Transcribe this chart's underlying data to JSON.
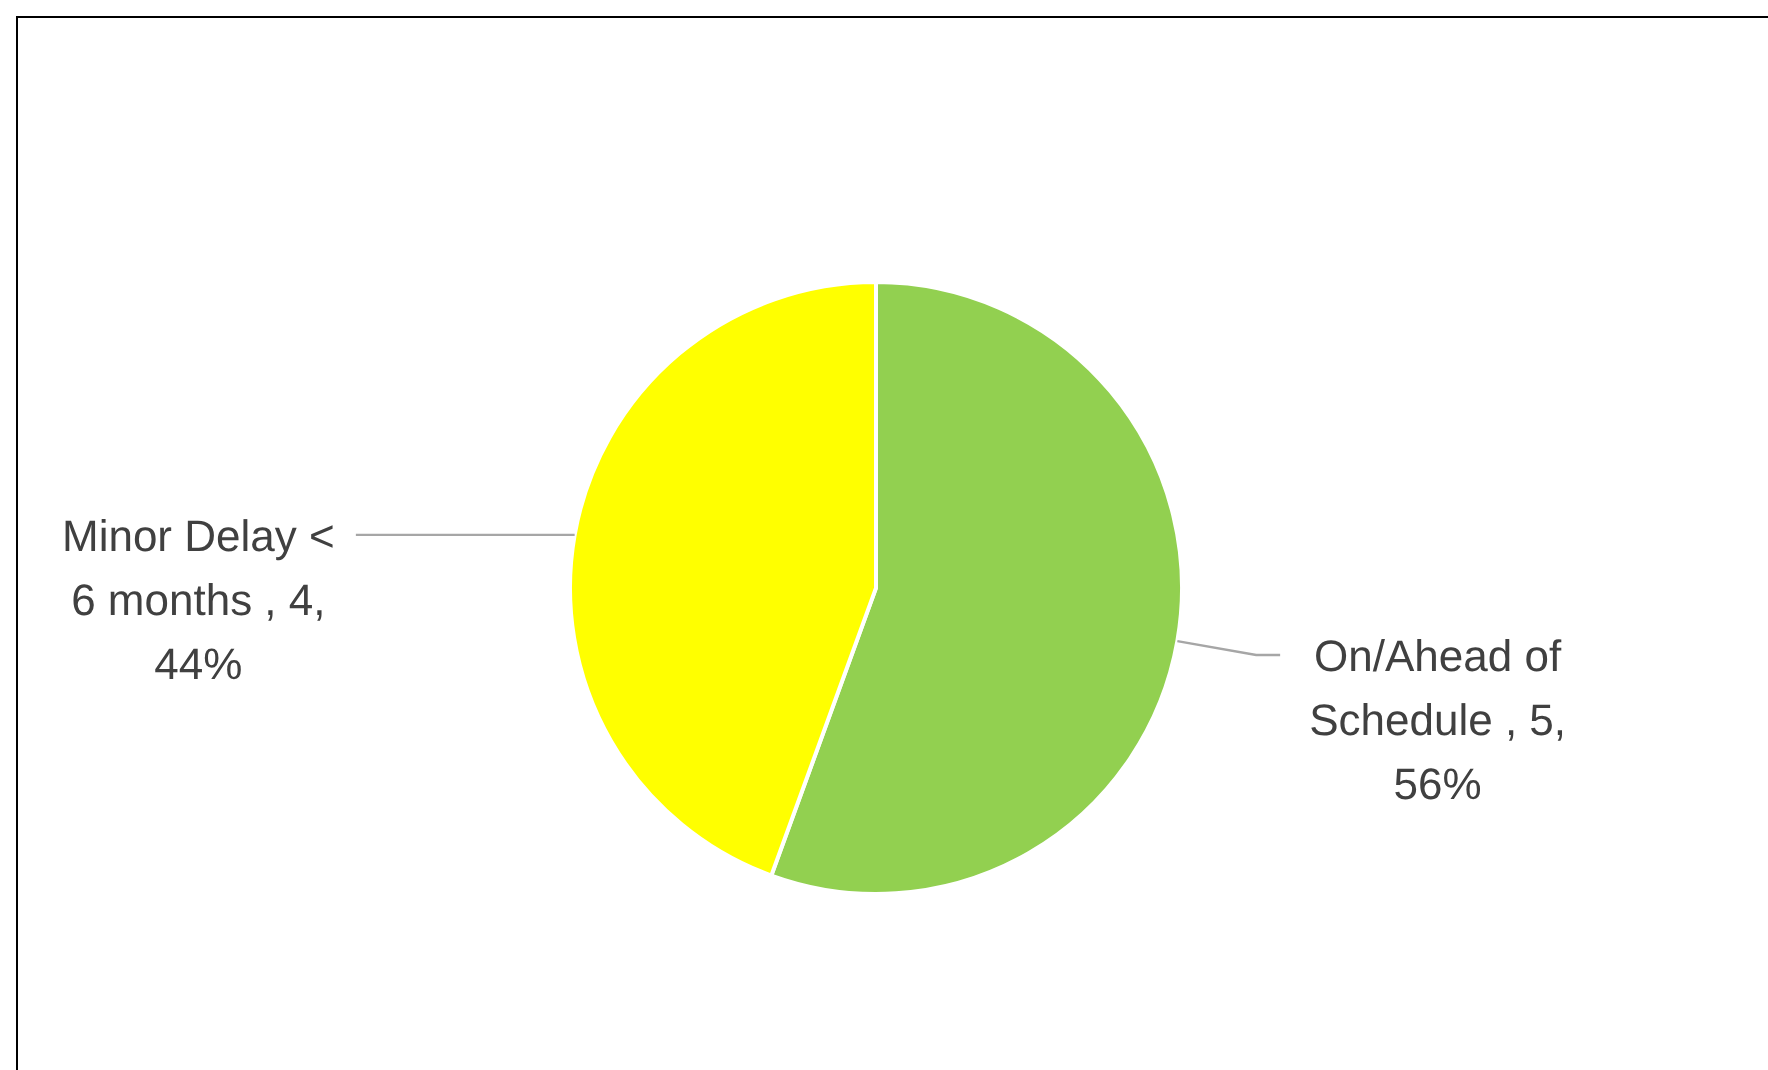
{
  "chart_data": {
    "type": "pie",
    "categories": [
      "On/Ahead of Schedule",
      "Minor Delay < 6 months"
    ],
    "values": [
      5,
      4
    ],
    "colors": [
      "#92d050",
      "#ffff00"
    ],
    "value_labels": [
      "5, 56%",
      "4, 44%"
    ],
    "legend": false
  }
}
